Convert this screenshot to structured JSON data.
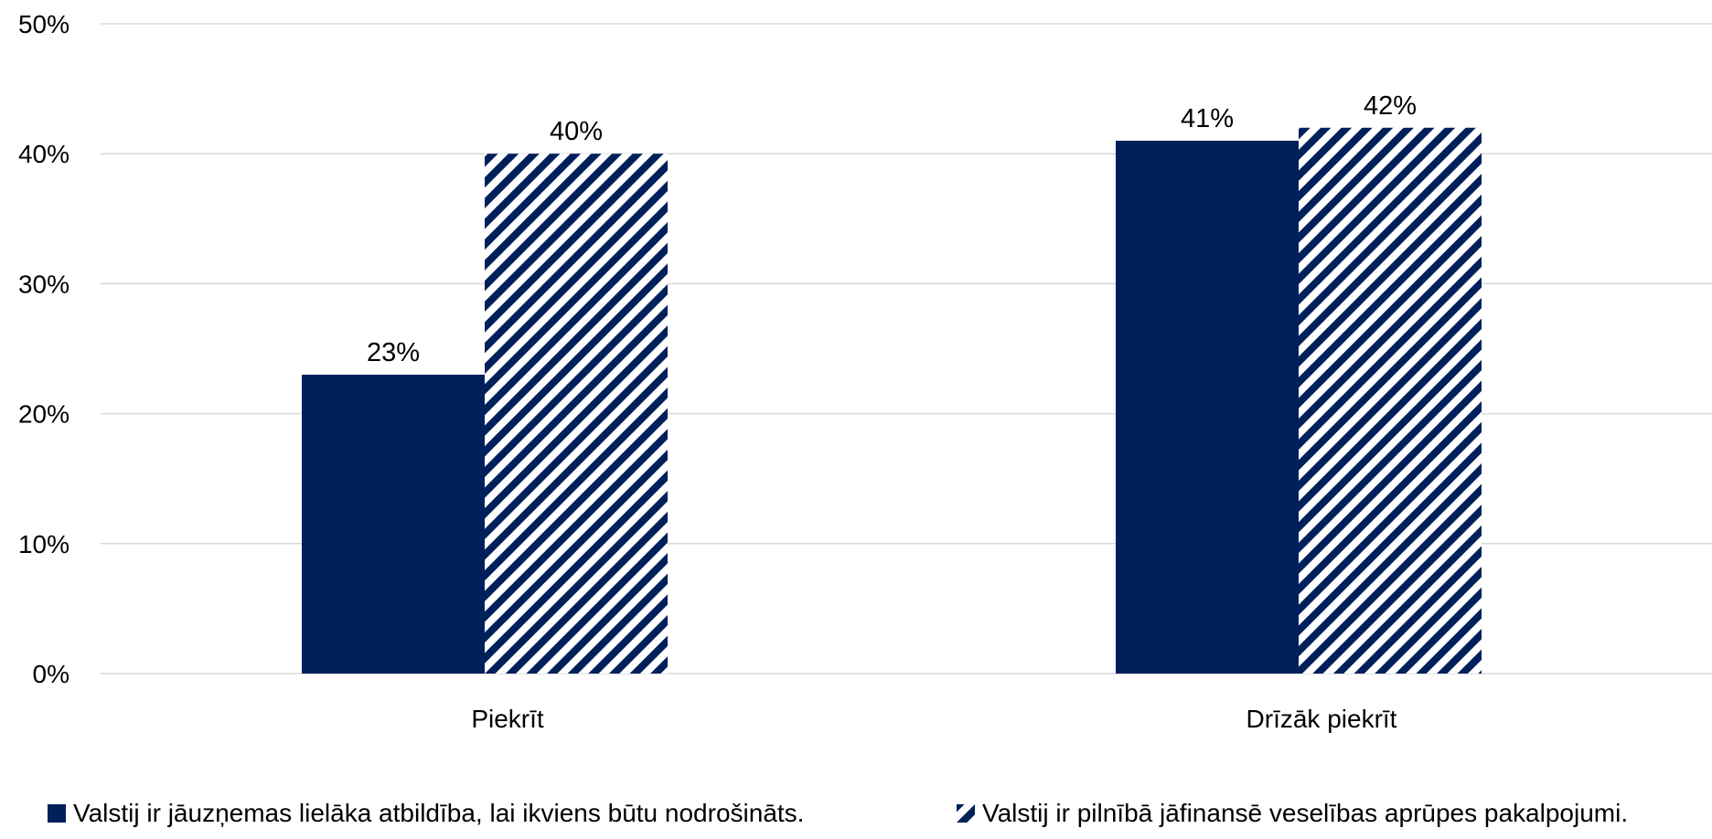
{
  "chart_data": {
    "type": "bar",
    "categories": [
      "Piekrīt",
      "Drīzāk piekrīt"
    ],
    "series": [
      {
        "name": "Valstij ir jāuzņemas lielāka atbildība, lai ikviens būtu nodrošināts.",
        "values": [
          23,
          41
        ],
        "value_labels": [
          "23%",
          "41%"
        ],
        "color": "#00205b",
        "fill": "solid"
      },
      {
        "name": "Valstij ir pilnībā jāfinansē veselības aprūpes pakalpojumi.",
        "values": [
          40,
          42
        ],
        "value_labels": [
          "40%",
          "42%"
        ],
        "color": "#00205b",
        "fill": "diagonal-hatch"
      }
    ],
    "ylim": [
      0,
      50
    ],
    "yticks": [
      0,
      10,
      20,
      30,
      40,
      50
    ],
    "ytick_labels": [
      "0%",
      "10%",
      "20%",
      "30%",
      "40%",
      "50%"
    ],
    "grid": true,
    "gridline_color": "#d9d9d9",
    "legend_position": "bottom"
  }
}
